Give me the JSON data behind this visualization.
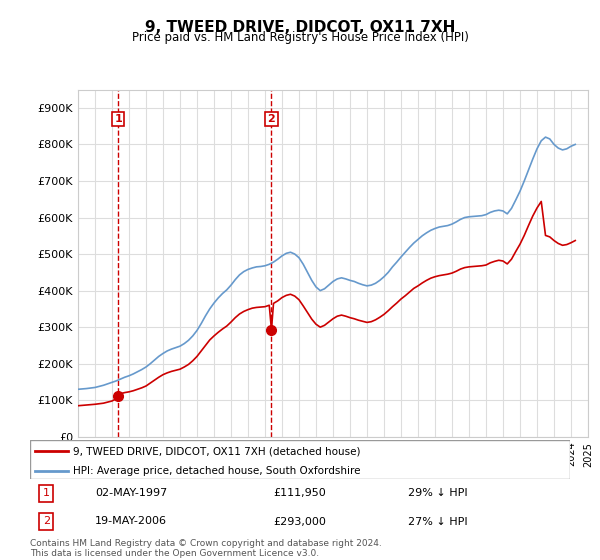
{
  "title": "9, TWEED DRIVE, DIDCOT, OX11 7XH",
  "subtitle": "Price paid vs. HM Land Registry's House Price Index (HPI)",
  "ylabel": "",
  "xlabel": "",
  "ylim": [
    0,
    950000
  ],
  "yticks": [
    0,
    100000,
    200000,
    300000,
    400000,
    500000,
    600000,
    700000,
    800000,
    900000
  ],
  "ytick_labels": [
    "£0",
    "£100K",
    "£200K",
    "£300K",
    "£400K",
    "£500K",
    "£600K",
    "£700K",
    "£800K",
    "£900K"
  ],
  "sale1_date": 1997.37,
  "sale1_price": 111950,
  "sale1_label": "1",
  "sale1_text": "02-MAY-1997    £111,950    29% ↓ HPI",
  "sale2_date": 2006.38,
  "sale2_price": 293000,
  "sale2_label": "2",
  "sale2_text": "19-MAY-2006    £293,000    27% ↓ HPI",
  "hpi_color": "#6699cc",
  "price_color": "#cc0000",
  "vline_color": "#cc0000",
  "legend_label1": "9, TWEED DRIVE, DIDCOT, OX11 7XH (detached house)",
  "legend_label2": "HPI: Average price, detached house, South Oxfordshire",
  "footer": "Contains HM Land Registry data © Crown copyright and database right 2024.\nThis data is licensed under the Open Government Licence v3.0.",
  "background_color": "#ffffff",
  "grid_color": "#dddddd",
  "hpi_data": {
    "years": [
      1995.0,
      1995.25,
      1995.5,
      1995.75,
      1996.0,
      1996.25,
      1996.5,
      1996.75,
      1997.0,
      1997.25,
      1997.5,
      1997.75,
      1998.0,
      1998.25,
      1998.5,
      1998.75,
      1999.0,
      1999.25,
      1999.5,
      1999.75,
      2000.0,
      2000.25,
      2000.5,
      2000.75,
      2001.0,
      2001.25,
      2001.5,
      2001.75,
      2002.0,
      2002.25,
      2002.5,
      2002.75,
      2003.0,
      2003.25,
      2003.5,
      2003.75,
      2004.0,
      2004.25,
      2004.5,
      2004.75,
      2005.0,
      2005.25,
      2005.5,
      2005.75,
      2006.0,
      2006.25,
      2006.5,
      2006.75,
      2007.0,
      2007.25,
      2007.5,
      2007.75,
      2008.0,
      2008.25,
      2008.5,
      2008.75,
      2009.0,
      2009.25,
      2009.5,
      2009.75,
      2010.0,
      2010.25,
      2010.5,
      2010.75,
      2011.0,
      2011.25,
      2011.5,
      2011.75,
      2012.0,
      2012.25,
      2012.5,
      2012.75,
      2013.0,
      2013.25,
      2013.5,
      2013.75,
      2014.0,
      2014.25,
      2014.5,
      2014.75,
      2015.0,
      2015.25,
      2015.5,
      2015.75,
      2016.0,
      2016.25,
      2016.5,
      2016.75,
      2017.0,
      2017.25,
      2017.5,
      2017.75,
      2018.0,
      2018.25,
      2018.5,
      2018.75,
      2019.0,
      2019.25,
      2019.5,
      2019.75,
      2020.0,
      2020.25,
      2020.5,
      2020.75,
      2021.0,
      2021.25,
      2021.5,
      2021.75,
      2022.0,
      2022.25,
      2022.5,
      2022.75,
      2023.0,
      2023.25,
      2023.5,
      2023.75,
      2024.0,
      2024.25
    ],
    "values": [
      130000,
      131000,
      132000,
      133500,
      135000,
      138000,
      141000,
      145000,
      149000,
      153000,
      158000,
      163000,
      167000,
      172000,
      178000,
      184000,
      191000,
      200000,
      210000,
      220000,
      228000,
      235000,
      240000,
      244000,
      248000,
      255000,
      264000,
      276000,
      291000,
      310000,
      331000,
      350000,
      366000,
      380000,
      392000,
      402000,
      415000,
      430000,
      443000,
      452000,
      458000,
      462000,
      465000,
      466000,
      468000,
      472000,
      478000,
      486000,
      495000,
      502000,
      505000,
      500000,
      490000,
      472000,
      450000,
      428000,
      410000,
      400000,
      405000,
      415000,
      425000,
      432000,
      435000,
      432000,
      428000,
      425000,
      420000,
      416000,
      413000,
      415000,
      420000,
      428000,
      438000,
      450000,
      465000,
      478000,
      492000,
      505000,
      518000,
      530000,
      540000,
      550000,
      558000,
      565000,
      570000,
      574000,
      576000,
      578000,
      582000,
      588000,
      595000,
      600000,
      602000,
      603000,
      604000,
      605000,
      608000,
      614000,
      618000,
      620000,
      618000,
      610000,
      625000,
      648000,
      672000,
      700000,
      730000,
      760000,
      788000,
      810000,
      820000,
      815000,
      800000,
      790000,
      785000,
      788000,
      795000,
      800000
    ]
  },
  "price_data": {
    "years": [
      1995.0,
      1995.25,
      1995.5,
      1995.75,
      1996.0,
      1996.25,
      1996.5,
      1996.75,
      1997.0,
      1997.25,
      1997.37,
      1997.5,
      1997.75,
      1998.0,
      1998.25,
      1998.5,
      1998.75,
      1999.0,
      1999.25,
      1999.5,
      1999.75,
      2000.0,
      2000.25,
      2000.5,
      2000.75,
      2001.0,
      2001.25,
      2001.5,
      2001.75,
      2002.0,
      2002.25,
      2002.5,
      2002.75,
      2003.0,
      2003.25,
      2003.5,
      2003.75,
      2004.0,
      2004.25,
      2004.5,
      2004.75,
      2005.0,
      2005.25,
      2005.5,
      2005.75,
      2006.0,
      2006.25,
      2006.38,
      2006.5,
      2006.75,
      2007.0,
      2007.25,
      2007.5,
      2007.75,
      2008.0,
      2008.25,
      2008.5,
      2008.75,
      2009.0,
      2009.25,
      2009.5,
      2009.75,
      2010.0,
      2010.25,
      2010.5,
      2010.75,
      2011.0,
      2011.25,
      2011.5,
      2011.75,
      2012.0,
      2012.25,
      2012.5,
      2012.75,
      2013.0,
      2013.25,
      2013.5,
      2013.75,
      2014.0,
      2014.25,
      2014.5,
      2014.75,
      2015.0,
      2015.25,
      2015.5,
      2015.75,
      2016.0,
      2016.25,
      2016.5,
      2016.75,
      2017.0,
      2017.25,
      2017.5,
      2017.75,
      2018.0,
      2018.25,
      2018.5,
      2018.75,
      2019.0,
      2019.25,
      2019.5,
      2019.75,
      2020.0,
      2020.25,
      2020.5,
      2020.75,
      2021.0,
      2021.25,
      2021.5,
      2021.75,
      2022.0,
      2022.25,
      2022.5,
      2022.75,
      2023.0,
      2023.25,
      2023.5,
      2023.75,
      2024.0,
      2024.25
    ],
    "values": [
      85000,
      86000,
      87000,
      88000,
      89000,
      90500,
      92000,
      95000,
      98000,
      104000,
      111950,
      118000,
      121000,
      123000,
      126000,
      130000,
      134000,
      139000,
      147000,
      155000,
      163000,
      170000,
      175000,
      179000,
      182000,
      185000,
      191000,
      198000,
      208000,
      220000,
      235000,
      250000,
      265000,
      276000,
      286000,
      295000,
      303000,
      314000,
      326000,
      336000,
      343000,
      348000,
      352000,
      354000,
      355000,
      356000,
      360000,
      293000,
      365000,
      372000,
      381000,
      387000,
      390000,
      385000,
      375000,
      358000,
      340000,
      322000,
      308000,
      300000,
      305000,
      314000,
      323000,
      330000,
      333000,
      330000,
      326000,
      323000,
      319000,
      316000,
      313000,
      315000,
      320000,
      327000,
      335000,
      345000,
      356000,
      366000,
      377000,
      386000,
      396000,
      406000,
      413000,
      421000,
      428000,
      434000,
      438000,
      441000,
      443000,
      445000,
      448000,
      453000,
      459000,
      463000,
      465000,
      466000,
      467000,
      468000,
      470000,
      476000,
      480000,
      483000,
      481000,
      473000,
      486000,
      507000,
      527000,
      551000,
      578000,
      604000,
      626000,
      644000,
      551000,
      547000,
      537000,
      529000,
      524000,
      526000,
      531000,
      537000
    ]
  }
}
